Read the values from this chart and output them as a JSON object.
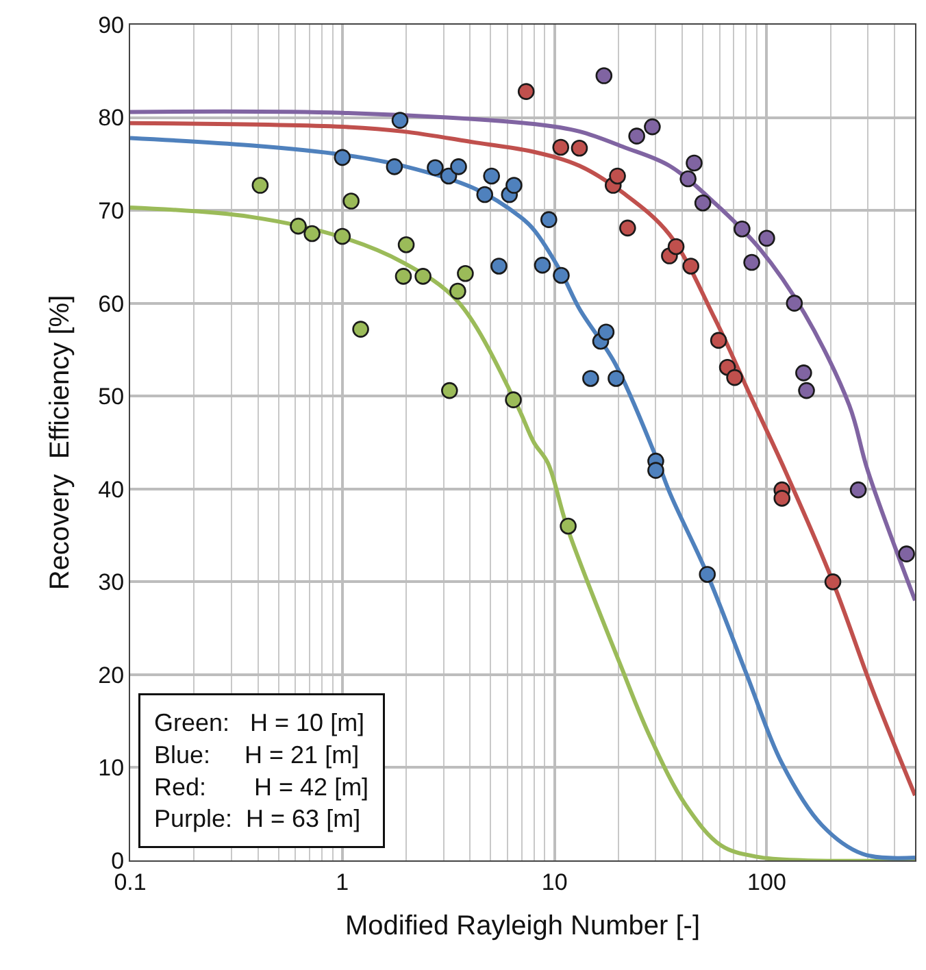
{
  "chart_data": {
    "type": "scatter",
    "xlabel": "Modified Rayleigh Number [-]",
    "ylabel": "Recovery  Efficiency [%]",
    "log": "x",
    "xlim": [
      0.1,
      500
    ],
    "xticks": [
      0.1,
      1,
      10,
      100
    ],
    "ylim": [
      0,
      90
    ],
    "yticks": [
      0,
      10,
      20,
      30,
      40,
      50,
      60,
      70,
      80,
      90
    ],
    "grid": true,
    "marker": "circle",
    "annotations": [
      "Green:   H = 10 [m]\nBlue:     H = 21 [m]\nRed:       H = 42 [m]\nPurple:  H = 63 [m]"
    ],
    "series": [
      {
        "type": "line",
        "color": "#9bbb59",
        "marker": "none",
        "x": [
          0.1,
          0.37,
          1,
          1.93,
          3.5,
          6.6,
          8,
          9.3,
          11.5,
          20.4,
          28.2,
          41.4,
          61,
          89.5,
          150,
          500
        ],
        "values": [
          70.3,
          69.3,
          67.1,
          64.4,
          60.2,
          49.2,
          45,
          42.8,
          35.8,
          21.1,
          13.3,
          6,
          1.6,
          0.4,
          0,
          0
        ]
      },
      {
        "type": "line",
        "color": "#4f81bd",
        "marker": "none",
        "x": [
          0.1,
          0.37,
          1,
          1.93,
          4.25,
          6.9,
          8,
          10.7,
          13.1,
          19.3,
          30,
          35.2,
          52.5,
          80.5,
          117.7,
          182,
          283,
          500
        ],
        "values": [
          77.8,
          77,
          76,
          74.8,
          72.3,
          69.3,
          67.9,
          63.4,
          59.4,
          53.5,
          43.5,
          39.4,
          30.8,
          20,
          10.5,
          3.8,
          0.7,
          0.3
        ]
      },
      {
        "type": "line",
        "color": "#c0504d",
        "marker": "none",
        "x": [
          0.1,
          1,
          1.93,
          4.25,
          8,
          13.1,
          21.3,
          34.8,
          56.8,
          83.9,
          122,
          205,
          316,
          500
        ],
        "values": [
          79.4,
          79,
          78.5,
          77.3,
          76.3,
          74.8,
          71.8,
          67.4,
          58.4,
          50,
          42,
          30,
          18.3,
          7
        ]
      },
      {
        "type": "line",
        "color": "#8064a2",
        "marker": "none",
        "x": [
          0.1,
          1,
          8,
          13.1,
          21.3,
          34.8,
          56.8,
          92.4,
          150.6,
          245,
          299,
          500
        ],
        "values": [
          80.6,
          80.5,
          79.3,
          78.5,
          76.8,
          74.8,
          70.8,
          65.9,
          58.9,
          49,
          42,
          28
        ]
      },
      {
        "color": "#9bbb59",
        "x": [
          0.41,
          0.62,
          0.72,
          1.0,
          1.1,
          1.22,
          1.94,
          2.0,
          2.4,
          3.2,
          3.5,
          3.8,
          6.4,
          11.6
        ],
        "values": [
          72.7,
          68.3,
          67.5,
          67.2,
          71,
          57.2,
          62.9,
          66.3,
          62.9,
          50.6,
          61.3,
          63.2,
          49.6,
          36
        ]
      },
      {
        "color": "#4f81bd",
        "x": [
          1.0,
          1.76,
          1.87,
          2.74,
          3.17,
          3.53,
          4.69,
          5.05,
          5.47,
          6.13,
          6.44,
          8.77,
          9.4,
          10.76,
          14.8,
          16.5,
          17.5,
          19.5,
          30,
          30,
          52.5
        ],
        "values": [
          75.7,
          74.7,
          79.7,
          74.6,
          73.7,
          74.7,
          71.7,
          73.7,
          64,
          71.7,
          72.7,
          64.1,
          69,
          63,
          51.9,
          55.9,
          56.9,
          51.9,
          43,
          42,
          30.8
        ]
      },
      {
        "color": "#c0504d",
        "x": [
          7.35,
          10.7,
          13.1,
          18.9,
          19.8,
          22.1,
          34.8,
          37.4,
          43.9,
          59.3,
          65.3,
          70.6,
          118,
          118,
          205
        ],
        "values": [
          82.8,
          76.8,
          76.7,
          72.7,
          73.7,
          68.1,
          65.1,
          66.1,
          64,
          56,
          53.1,
          52,
          39.9,
          39,
          30
        ]
      },
      {
        "color": "#8064a2",
        "x": [
          17.1,
          24.4,
          28.9,
          42.6,
          45.5,
          50,
          76.5,
          85,
          100,
          135,
          149.3,
          154,
          270,
          456
        ],
        "values": [
          84.5,
          78,
          79,
          73.4,
          75.1,
          70.8,
          68,
          64.4,
          67,
          60,
          52.5,
          50.6,
          39.9,
          33
        ]
      }
    ]
  }
}
